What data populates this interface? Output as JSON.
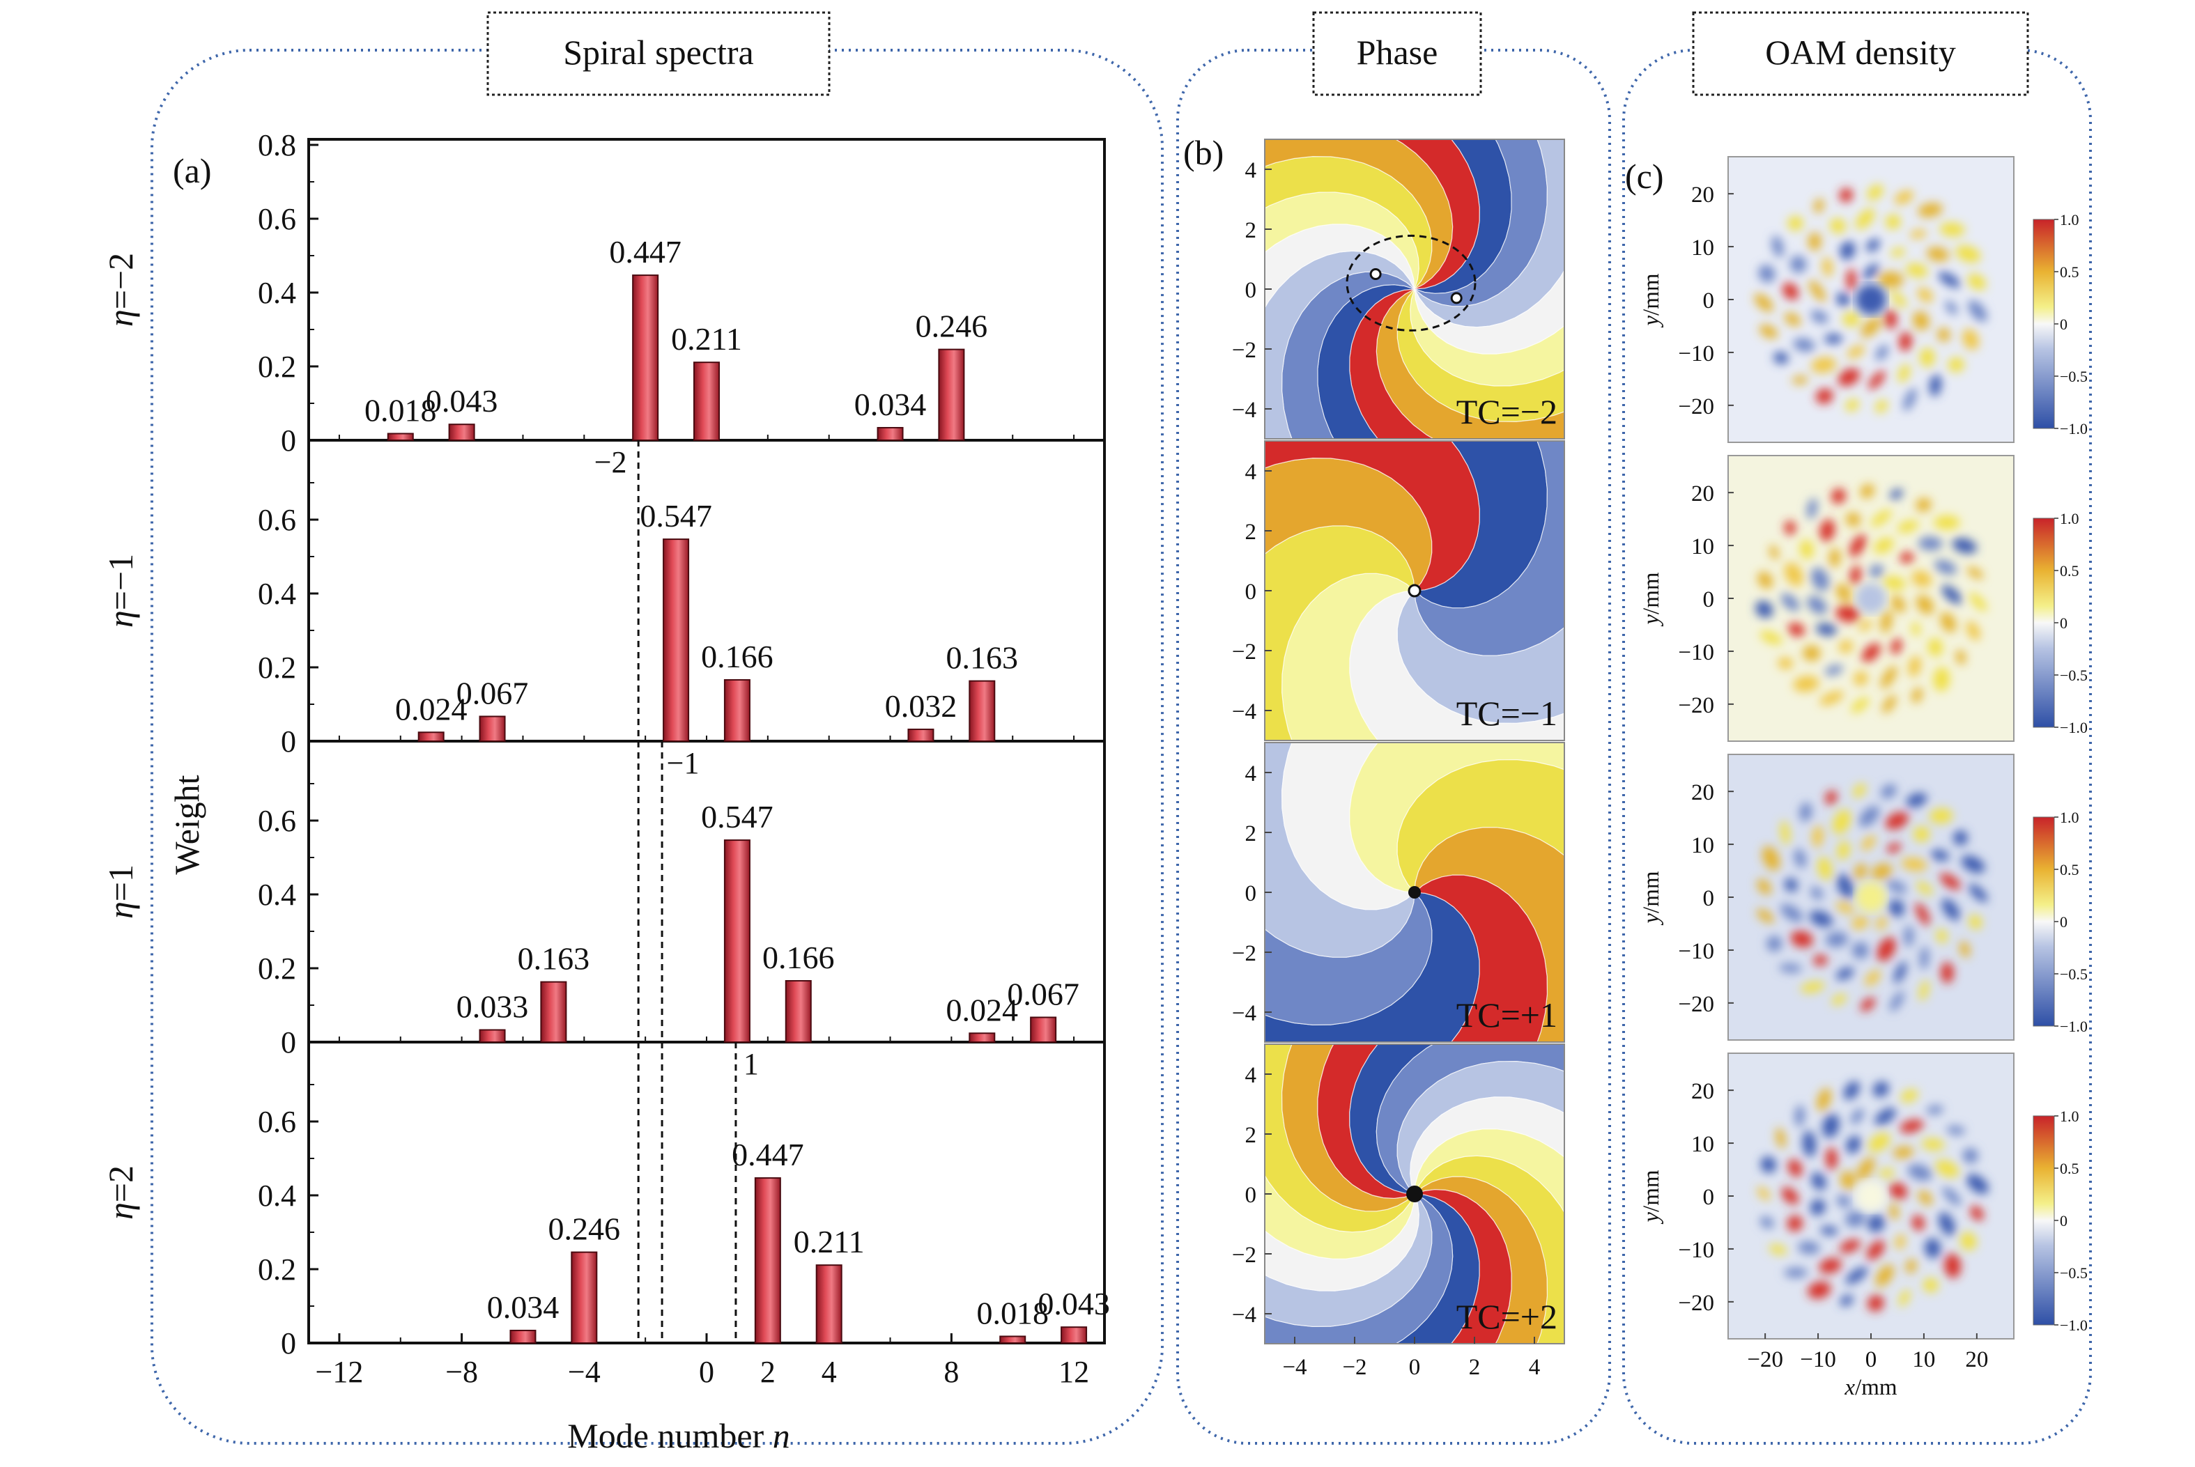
{
  "panels": {
    "spectra": {
      "title": "Spiral spectra",
      "label": "(a)"
    },
    "phase": {
      "title": "Phase",
      "label": "(b)"
    },
    "oam": {
      "title": "OAM density",
      "label": "(c)"
    }
  },
  "colors": {
    "bar": "#d2303e",
    "frame_dots": "#3e66aa",
    "phase": [
      "#2e52a8",
      "#6f87c6",
      "#b7c4e3",
      "#f3f3f3",
      "#f5f5a0",
      "#ece04a",
      "#e4a62e",
      "#d42a2a"
    ]
  },
  "chart_data": [
    {
      "type": "bar",
      "xlabel": "Mode number n",
      "ylabel": "Weight",
      "xlim": [
        -13,
        13
      ],
      "xticks": [
        -12,
        -8,
        -4,
        0,
        2,
        4,
        8,
        12
      ],
      "yticks": [
        0,
        0.2,
        0.4,
        0.6,
        0.8
      ],
      "ylim": [
        0,
        0.8
      ],
      "rows": [
        {
          "name": "η=−2",
          "marker": "−2",
          "marker_x": -2,
          "bars": [
            {
              "n": -10,
              "w": 0.018,
              "label": "0.018"
            },
            {
              "n": -8,
              "w": 0.043,
              "label": "0.043"
            },
            {
              "n": -2,
              "w": 0.447,
              "label": "0.447"
            },
            {
              "n": 0,
              "w": 0.211,
              "label": "0.211"
            },
            {
              "n": 6,
              "w": 0.034,
              "label": "0.034"
            },
            {
              "n": 8,
              "w": 0.246,
              "label": "0.246"
            }
          ]
        },
        {
          "name": "η=−1",
          "marker": "−1",
          "marker_x": -1,
          "bars": [
            {
              "n": -9,
              "w": 0.024,
              "label": "0.024"
            },
            {
              "n": -7,
              "w": 0.067,
              "label": "0.067"
            },
            {
              "n": -1,
              "w": 0.547,
              "label": "0.547"
            },
            {
              "n": 1,
              "w": 0.166,
              "label": "0.166"
            },
            {
              "n": 7,
              "w": 0.032,
              "label": "0.032"
            },
            {
              "n": 9,
              "w": 0.163,
              "label": "0.163"
            }
          ]
        },
        {
          "name": "η=1",
          "marker": "1",
          "marker_x": 1,
          "bars": [
            {
              "n": -7,
              "w": 0.033,
              "label": "0.033"
            },
            {
              "n": -5,
              "w": 0.163,
              "label": "0.163"
            },
            {
              "n": 1,
              "w": 0.547,
              "label": "0.547"
            },
            {
              "n": 3,
              "w": 0.166,
              "label": "0.166"
            },
            {
              "n": 9,
              "w": 0.024,
              "label": "0.024"
            },
            {
              "n": 11,
              "w": 0.067,
              "label": "0.067"
            }
          ]
        },
        {
          "name": "η=2",
          "marker": "",
          "marker_x": null,
          "bars": [
            {
              "n": -6,
              "w": 0.034,
              "label": "0.034"
            },
            {
              "n": -4,
              "w": 0.246,
              "label": "0.246"
            },
            {
              "n": 2,
              "w": 0.447,
              "label": "0.447"
            },
            {
              "n": 4,
              "w": 0.211,
              "label": "0.211"
            },
            {
              "n": 10,
              "w": 0.018,
              "label": "0.018"
            },
            {
              "n": 12,
              "w": 0.043,
              "label": "0.043"
            }
          ]
        }
      ]
    },
    {
      "type": "heatmap",
      "name": "phase",
      "xlim": [
        -5,
        5
      ],
      "ylim": [
        -5,
        5
      ],
      "xticks": [
        -4,
        -2,
        0,
        2,
        4
      ],
      "yticks": [
        4,
        2,
        0,
        -2,
        -4
      ],
      "panels": [
        {
          "tc_label": "TC=−2",
          "tc": -2
        },
        {
          "tc_label": "TC=−1",
          "tc": -1
        },
        {
          "tc_label": "TC=+1",
          "tc": 1
        },
        {
          "tc_label": "TC=+2",
          "tc": 2
        }
      ]
    },
    {
      "type": "heatmap",
      "name": "oam-density",
      "xlabel": "x/mm",
      "ylabel": "y/mm",
      "xticks": [
        -20,
        -10,
        0,
        10,
        20
      ],
      "yticks": [
        20,
        10,
        0,
        -10,
        -20
      ],
      "colorbar_ticks": [
        "1.0",
        "0.5",
        "0",
        "−0.5",
        "−1.0"
      ],
      "colorbar_range": [
        -1,
        1
      ],
      "panels": [
        {
          "row": 1
        },
        {
          "row": 2
        },
        {
          "row": 3
        },
        {
          "row": 4
        }
      ]
    }
  ]
}
